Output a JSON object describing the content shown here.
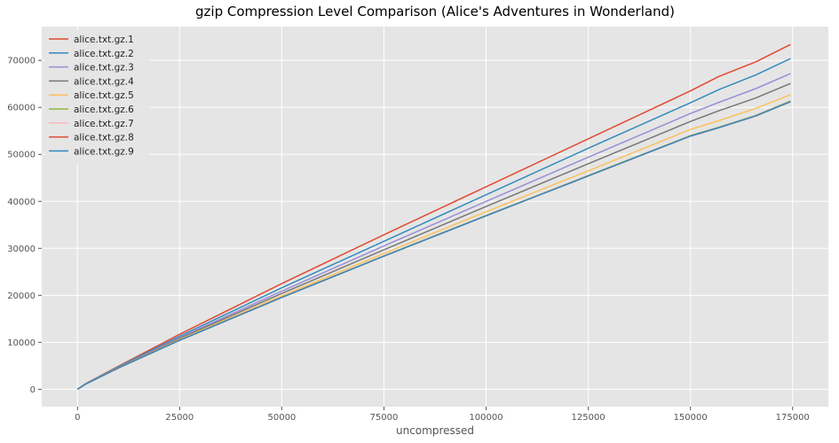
{
  "chart_data": {
    "type": "line",
    "title": "gzip Compression Level Comparison (Alice's Adventures in Wonderland)",
    "xlabel": "uncompressed",
    "ylabel": "",
    "xlim": [
      -8750,
      183750
    ],
    "ylim": [
      -3700,
      77200
    ],
    "xticks": [
      0,
      25000,
      50000,
      75000,
      100000,
      125000,
      150000,
      175000
    ],
    "yticks": [
      0,
      10000,
      20000,
      30000,
      40000,
      50000,
      60000,
      70000
    ],
    "grid": true,
    "legend_position": "top-left",
    "x": [
      0,
      2000,
      10000,
      25000,
      50000,
      75000,
      100000,
      125000,
      150000,
      157000,
      166000,
      174500
    ],
    "series": [
      {
        "name": "alice.txt.gz.1",
        "color": "#E24A33",
        "values": [
          0,
          1200,
          4900,
          11700,
          22500,
          32900,
          43100,
          53300,
          63500,
          66600,
          69700,
          73400
        ]
      },
      {
        "name": "alice.txt.gz.2",
        "color": "#348ABD",
        "values": [
          0,
          1180,
          4800,
          11300,
          21600,
          31500,
          41400,
          51300,
          61000,
          63800,
          66900,
          70400
        ]
      },
      {
        "name": "alice.txt.gz.3",
        "color": "#988ED5",
        "values": [
          0,
          1160,
          4700,
          11000,
          20900,
          30500,
          40000,
          49400,
          58700,
          61100,
          64000,
          67200
        ]
      },
      {
        "name": "alice.txt.gz.4",
        "color": "#777777",
        "values": [
          0,
          1140,
          4650,
          10800,
          20400,
          29700,
          38900,
          48000,
          57000,
          59300,
          62000,
          65100
        ]
      },
      {
        "name": "alice.txt.gz.5",
        "color": "#FBC15E",
        "values": [
          0,
          1130,
          4600,
          10600,
          19900,
          28900,
          37800,
          46500,
          55300,
          57200,
          59800,
          62700
        ]
      },
      {
        "name": "alice.txt.gz.6",
        "color": "#8EBA42",
        "values": [
          0,
          1120,
          4550,
          10450,
          19600,
          28400,
          37000,
          45500,
          54000,
          55800,
          58300,
          61400
        ]
      },
      {
        "name": "alice.txt.gz.7",
        "color": "#FFB5B8",
        "values": [
          0,
          1120,
          4550,
          10440,
          19580,
          28370,
          36960,
          45450,
          53950,
          55750,
          58250,
          61300
        ]
      },
      {
        "name": "alice.txt.gz.8",
        "color": "#E24A33",
        "values": [
          0,
          1115,
          4540,
          10420,
          19550,
          28330,
          36920,
          45400,
          53900,
          55700,
          58200,
          61200
        ]
      },
      {
        "name": "alice.txt.gz.9",
        "color": "#348ABD",
        "values": [
          0,
          1115,
          4540,
          10420,
          19550,
          28330,
          36920,
          45400,
          53900,
          55700,
          58200,
          61200
        ]
      }
    ]
  }
}
